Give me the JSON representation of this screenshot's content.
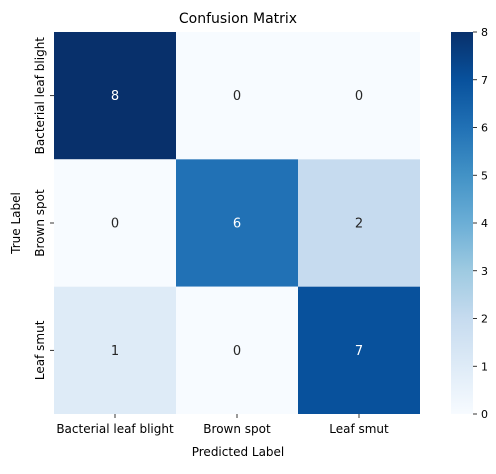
{
  "chart_data": {
    "type": "heatmap",
    "title": "Confusion Matrix",
    "xlabel": "Predicted Label",
    "ylabel": "True Label",
    "x_categories": [
      "Bacterial leaf blight",
      "Brown spot",
      "Leaf smut"
    ],
    "y_categories": [
      "Bacterial leaf blight",
      "Brown spot",
      "Leaf smut"
    ],
    "values": [
      [
        8,
        0,
        0
      ],
      [
        0,
        6,
        2
      ],
      [
        1,
        0,
        7
      ]
    ],
    "colorbar": {
      "min": 0,
      "max": 8,
      "ticks": [
        0,
        1,
        2,
        3,
        4,
        5,
        6,
        7,
        8
      ],
      "colormap": "Blues"
    },
    "colors": {
      "low": "#f7fbff",
      "high": "#08306b"
    }
  }
}
